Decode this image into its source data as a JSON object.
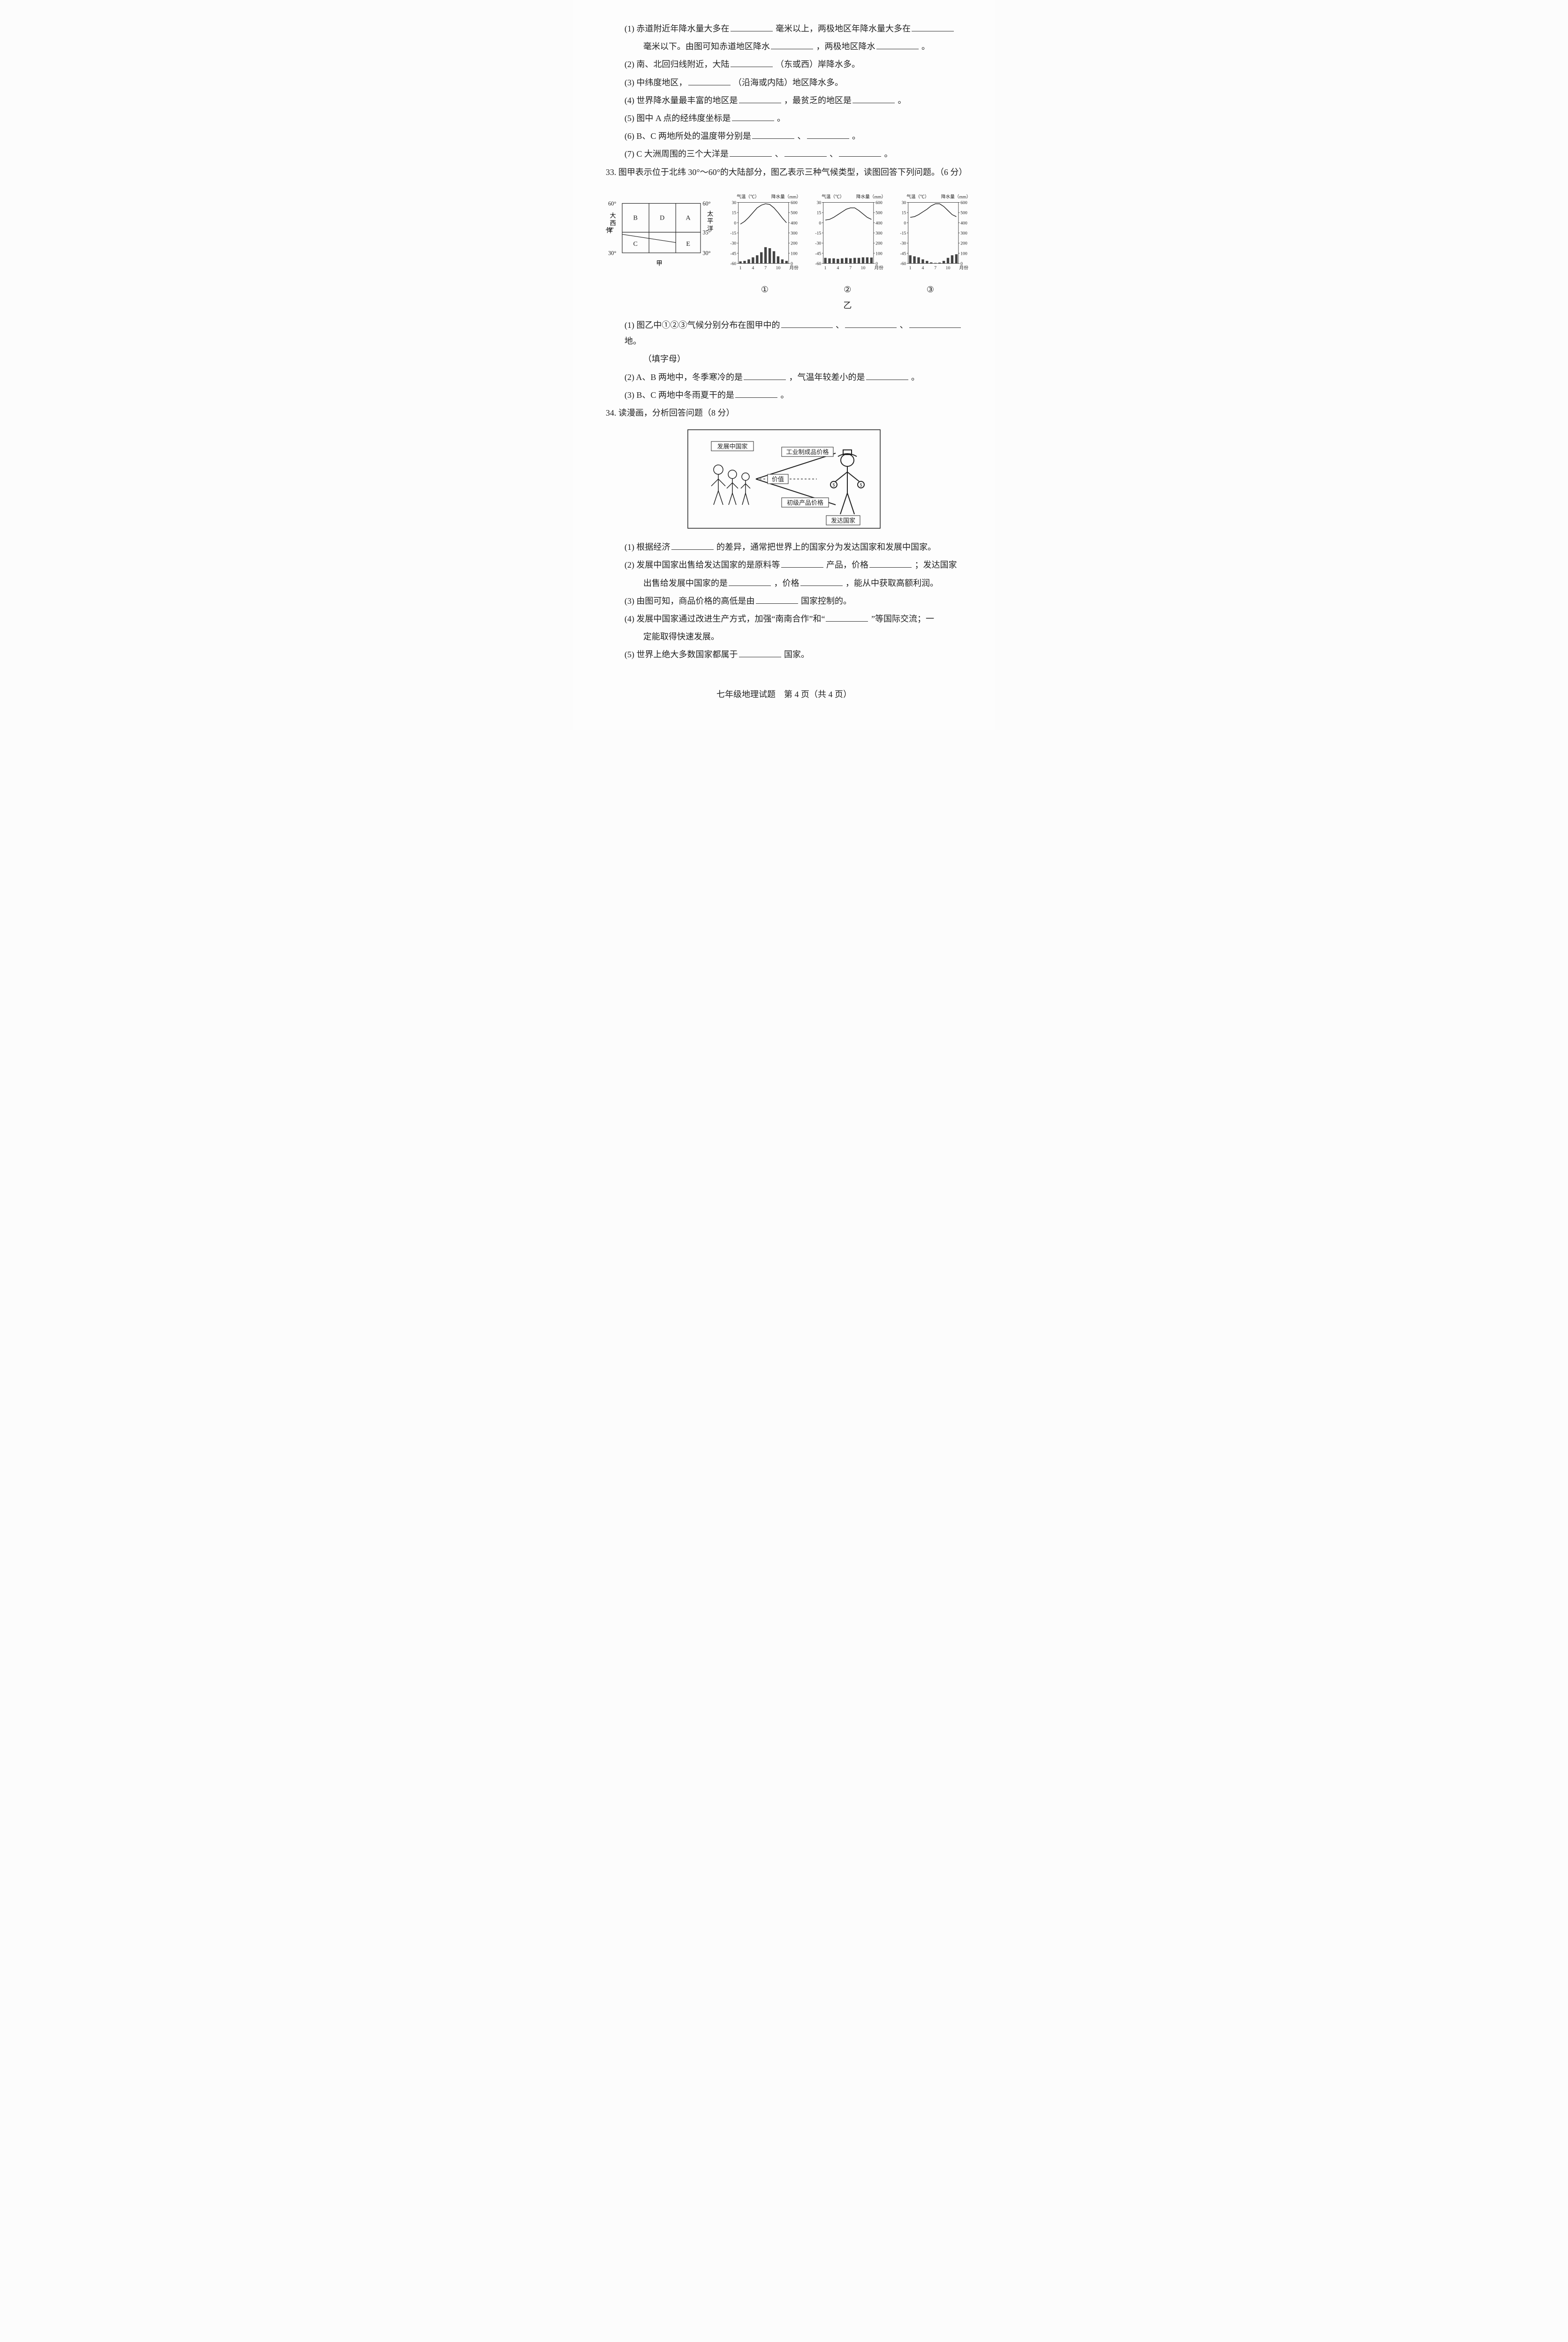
{
  "q32": {
    "items": [
      {
        "n": "(1)",
        "text_parts": [
          "赤道附近年降水量大多在",
          "毫米以上，两极地区年降水量大多在"
        ],
        "line2_parts": [
          "毫米以下。由图可知赤道地区降水",
          "，两极地区降水",
          "。"
        ]
      },
      {
        "n": "(2)",
        "text_parts": [
          "南、北回归线附近，大陆",
          "（东或西）岸降水多。"
        ]
      },
      {
        "n": "(3)",
        "text_parts": [
          "中纬度地区，",
          "（沿海或内陆）地区降水多。"
        ]
      },
      {
        "n": "(4)",
        "text_parts": [
          "世界降水量最丰富的地区是",
          "，最贫乏的地区是",
          "。"
        ]
      },
      {
        "n": "(5)",
        "text_parts": [
          "图中 A 点的经纬度坐标是",
          "。"
        ]
      },
      {
        "n": "(6)",
        "text_parts": [
          "B、C 两地所处的温度带分别是",
          "、",
          "。"
        ]
      },
      {
        "n": "(7)",
        "text_parts": [
          "C 大洲周围的三个大洋是",
          "、",
          "、",
          "。"
        ]
      }
    ]
  },
  "q33": {
    "num": "33.",
    "stem": "图甲表示位于北纬 30°～60°的大陆部分，图乙表示三种气候类型，读图回答下列问题。（6 分）",
    "map": {
      "left_ocean": "大西洋",
      "right_ocean": "太平洋",
      "lats": [
        "60°",
        "40°",
        "30°"
      ],
      "right_lats": [
        "60°",
        "35°",
        "30°"
      ],
      "cells": [
        "B",
        "D",
        "A",
        "C",
        "",
        "E"
      ],
      "caption": "甲"
    },
    "charts_common": {
      "temp_title": "气温（℃）",
      "precip_title": "降水量（mm）",
      "y_left": [
        30,
        15,
        0,
        -15,
        -30,
        -45,
        -60
      ],
      "y_right": [
        600,
        500,
        400,
        300,
        200,
        100,
        0
      ],
      "x_labels": [
        "1",
        "4",
        "7",
        "10",
        "月份"
      ]
    },
    "charts": [
      {
        "id": "①",
        "temp_points": [
          [
            1,
            -2
          ],
          [
            2,
            2
          ],
          [
            3,
            8
          ],
          [
            4,
            15
          ],
          [
            5,
            22
          ],
          [
            6,
            26
          ],
          [
            7,
            28
          ],
          [
            8,
            27
          ],
          [
            9,
            22
          ],
          [
            10,
            15
          ],
          [
            11,
            7
          ],
          [
            12,
            0
          ]
        ],
        "bars": [
          20,
          25,
          40,
          60,
          80,
          110,
          160,
          150,
          120,
          70,
          40,
          25
        ],
        "bar_color": "#444",
        "line_color": "#222"
      },
      {
        "id": "②",
        "temp_points": [
          [
            1,
            4
          ],
          [
            2,
            5
          ],
          [
            3,
            8
          ],
          [
            4,
            12
          ],
          [
            5,
            16
          ],
          [
            6,
            20
          ],
          [
            7,
            22
          ],
          [
            8,
            22
          ],
          [
            9,
            18
          ],
          [
            10,
            13
          ],
          [
            11,
            8
          ],
          [
            12,
            5
          ]
        ],
        "bars": [
          55,
          50,
          50,
          45,
          50,
          55,
          50,
          55,
          55,
          60,
          60,
          58
        ],
        "bar_color": "#444",
        "line_color": "#222"
      },
      {
        "id": "③",
        "temp_points": [
          [
            1,
            8
          ],
          [
            2,
            9
          ],
          [
            3,
            12
          ],
          [
            4,
            16
          ],
          [
            5,
            20
          ],
          [
            6,
            25
          ],
          [
            7,
            28
          ],
          [
            8,
            28
          ],
          [
            9,
            24
          ],
          [
            10,
            18
          ],
          [
            11,
            12
          ],
          [
            12,
            9
          ]
        ],
        "bars": [
          80,
          70,
          60,
          40,
          25,
          10,
          5,
          8,
          25,
          55,
          80,
          90
        ],
        "bar_color": "#444",
        "line_color": "#222"
      }
    ],
    "yi_caption": "乙",
    "items": [
      {
        "n": "(1)",
        "parts": [
          "图乙中①②③气候分别分布在图甲中的",
          "、",
          "、",
          "地。"
        ],
        "tail": "（填字母）"
      },
      {
        "n": "(2)",
        "parts": [
          "A、B 两地中，冬季寒冷的是",
          "，气温年较差小的是",
          "。"
        ]
      },
      {
        "n": "(3)",
        "parts": [
          "B、C 两地中冬雨夏干的是",
          "。"
        ]
      }
    ]
  },
  "q34": {
    "num": "34.",
    "stem": "读漫画，分析回答问题（8 分）",
    "cartoon": {
      "dev_label": "发展中国家",
      "rich_label": "发达国家",
      "top_label": "工业制成品价格",
      "mid_label": "价值",
      "bottom_label": "初级产品价格"
    },
    "items": [
      {
        "n": "(1)",
        "parts": [
          "根据经济",
          "的差异，通常把世界上的国家分为发达国家和发展中国家。"
        ]
      },
      {
        "n": "(2)",
        "parts": [
          "发展中国家出售给发达国家的是原料等",
          "产品，价格",
          "；发达国家"
        ],
        "line2": [
          "出售给发展中国家的是",
          "，价格",
          "，能从中获取高额利润。"
        ]
      },
      {
        "n": "(3)",
        "parts": [
          "由图可知，商品价格的高低是由",
          "国家控制的。"
        ]
      },
      {
        "n": "(4)",
        "parts": [
          "发展中国家通过改进生产方式，加强“南南合作”和“",
          "”等国际交流；一"
        ],
        "line2_plain": "定能取得快速发展。"
      },
      {
        "n": "(5)",
        "parts": [
          "世界上绝大多数国家都属于",
          "国家。"
        ]
      }
    ]
  },
  "footer": "七年级地理试题　第 4 页（共 4 页）",
  "style": {
    "page_bg": "#fdfdfd",
    "ink": "#222",
    "axis_color": "#333",
    "grid_color": "#999",
    "svg_font_small": 11,
    "svg_font_normal": 13,
    "svg_font_label": 14
  }
}
